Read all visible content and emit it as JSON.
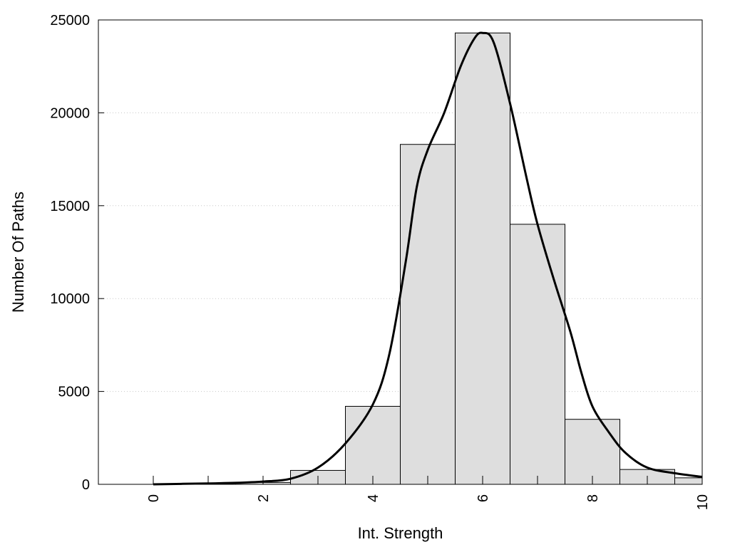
{
  "chart_data": {
    "type": "bar",
    "xlabel": "Int. Strength",
    "ylabel": "Number Of Paths",
    "xlim": [
      -1,
      10
    ],
    "ylim": [
      0,
      25000
    ],
    "x_ticks": [
      0,
      2,
      4,
      6,
      8,
      10
    ],
    "y_ticks": [
      0,
      5000,
      10000,
      15000,
      20000,
      25000
    ],
    "grid": "horizontal dotted",
    "bar_color": "#dedede",
    "bars": [
      {
        "x": 0,
        "value": 0
      },
      {
        "x": 1,
        "value": 0
      },
      {
        "x": 2,
        "value": 100
      },
      {
        "x": 3,
        "value": 750
      },
      {
        "x": 4,
        "value": 4200
      },
      {
        "x": 5,
        "value": 18300
      },
      {
        "x": 6,
        "value": 24300
      },
      {
        "x": 7,
        "value": 14000
      },
      {
        "x": 8,
        "value": 3500
      },
      {
        "x": 9,
        "value": 800
      },
      {
        "x": 10,
        "value": 350
      }
    ],
    "fit_curve": {
      "type": "line",
      "color": "#000000",
      "x": [
        0,
        1,
        1.5,
        2,
        2.5,
        3,
        3.5,
        4,
        4.3,
        4.6,
        4.8,
        5,
        5.3,
        5.6,
        5.85,
        6,
        6.2,
        6.5,
        6.8,
        7,
        7.3,
        7.6,
        7.8,
        8,
        8.3,
        8.6,
        9,
        9.5,
        10
      ],
      "y": [
        0,
        50,
        80,
        150,
        300,
        900,
        2200,
        4300,
        7000,
        12000,
        16000,
        18000,
        20000,
        22500,
        24000,
        24300,
        23800,
        20500,
        16500,
        14000,
        11000,
        8200,
        6000,
        4200,
        2800,
        1700,
        900,
        600,
        400
      ]
    }
  }
}
